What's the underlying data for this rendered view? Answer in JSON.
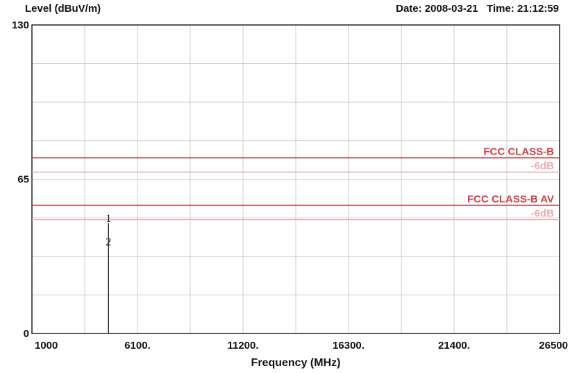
{
  "header": {
    "ylabel": "Level (dBuV/m)",
    "date_label": "Date:",
    "date": "2008-03-21",
    "time_label": "Time:",
    "time": "21:12:59"
  },
  "chart_data": {
    "type": "line",
    "xlabel": "Frequency (MHz)",
    "ylabel": "Level (dBuV/m)",
    "xlim": [
      1000,
      26500
    ],
    "ylim": [
      0,
      130
    ],
    "grid": true,
    "x_ticks": [
      {
        "value": 1000,
        "label": "1000"
      },
      {
        "value": 6100,
        "label": "6100."
      },
      {
        "value": 11200,
        "label": "11200."
      },
      {
        "value": 16300,
        "label": "16300."
      },
      {
        "value": 21400,
        "label": "21400."
      },
      {
        "value": 26500,
        "label": "26500"
      }
    ],
    "y_ticks": [
      {
        "value": 0,
        "label": "0"
      },
      {
        "value": 65,
        "label": "65"
      },
      {
        "value": 130,
        "label": "130"
      }
    ],
    "limit_lines": [
      {
        "name": "FCC CLASS-B",
        "value": 74,
        "color": "#b2323c",
        "label_color": "#d43f46"
      },
      {
        "name": "-6dB",
        "value": 68,
        "color": "#eeaab0",
        "label_color": "#eeaab0"
      },
      {
        "name": "FCC CLASS-B  AV",
        "value": 54,
        "color": "#b2323c",
        "label_color": "#d43f46"
      },
      {
        "name": "-6dB",
        "value": 48,
        "color": "#eeaab0",
        "label_color": "#eeaab0"
      }
    ],
    "markers": [
      {
        "label": "1",
        "x": 4700,
        "y": 46.5
      },
      {
        "label": "2",
        "x": 4700,
        "y": 36.5
      }
    ],
    "spike": {
      "x": 4700,
      "y": 46.5
    }
  }
}
